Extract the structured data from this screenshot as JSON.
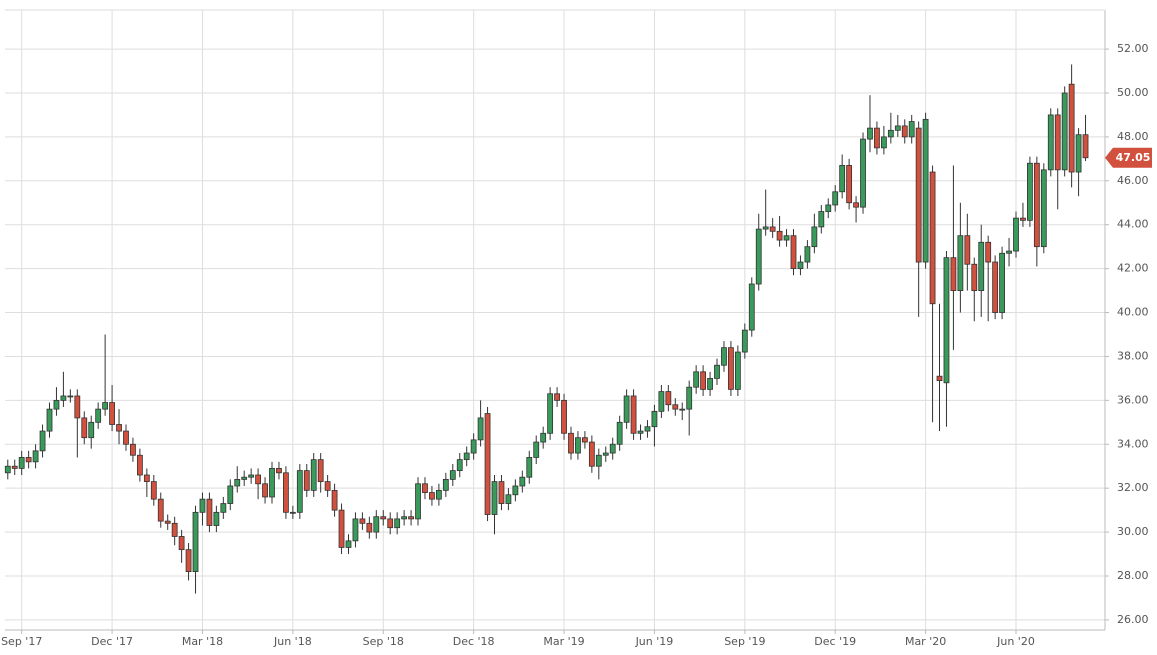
{
  "chart_data": {
    "type": "candlestick",
    "up_color": "#3a9a5b",
    "down_color": "#d2503e",
    "grid": true,
    "x": [
      0,
      1,
      2,
      3,
      4,
      5,
      6,
      7,
      8,
      9,
      10,
      11,
      12,
      13,
      14,
      15,
      16,
      17,
      18,
      19,
      20,
      21,
      22,
      23,
      24,
      25,
      26,
      27,
      28,
      29,
      30,
      31,
      32,
      33,
      34,
      35,
      36,
      37,
      38,
      39,
      40,
      41,
      42,
      43,
      44,
      45,
      46,
      47,
      48,
      49,
      50,
      51,
      52,
      53,
      54,
      55,
      56,
      57,
      58,
      59,
      60,
      61,
      62,
      63,
      64,
      65,
      66,
      67,
      68,
      69,
      70,
      71,
      72,
      73,
      74,
      75,
      76,
      77,
      78,
      79,
      80,
      81,
      82,
      83,
      84,
      85,
      86,
      87,
      88,
      89,
      90,
      91,
      92,
      93,
      94,
      95,
      96,
      97,
      98,
      99,
      100,
      101,
      102,
      103,
      104,
      105,
      106,
      107,
      108,
      109,
      110,
      111,
      112,
      113,
      114,
      115,
      116,
      117,
      118,
      119,
      120,
      121,
      122,
      123,
      124,
      125,
      126,
      127,
      128,
      129,
      130,
      131,
      132,
      133,
      134,
      135,
      136,
      137,
      138,
      139,
      140,
      141,
      142,
      143,
      144,
      145,
      146,
      147,
      148,
      149,
      150,
      151,
      152,
      153,
      154,
      155
    ],
    "open": [
      32.7,
      33.0,
      32.9,
      33.4,
      33.2,
      33.7,
      34.6,
      35.6,
      36.0,
      36.2,
      36.2,
      35.2,
      34.3,
      35.0,
      35.6,
      35.9,
      34.9,
      34.6,
      34.0,
      33.5,
      32.6,
      32.3,
      31.5,
      30.5,
      30.4,
      29.8,
      29.2,
      28.2,
      30.9,
      31.5,
      30.3,
      30.9,
      31.3,
      32.1,
      32.4,
      32.5,
      32.6,
      32.2,
      31.6,
      32.9,
      32.7,
      30.9,
      30.9,
      32.8,
      31.9,
      33.3,
      32.3,
      31.9,
      31.0,
      29.3,
      29.6,
      30.6,
      30.4,
      30.0,
      30.7,
      30.6,
      30.2,
      30.6,
      30.7,
      30.6,
      32.2,
      31.8,
      31.5,
      31.9,
      32.4,
      32.8,
      33.3,
      33.6,
      34.2,
      35.4,
      30.8,
      32.3,
      31.3,
      31.7,
      32.1,
      32.5,
      33.4,
      34.1,
      34.5,
      36.3,
      36.0,
      34.5,
      33.6,
      34.3,
      34.1,
      33.0,
      33.5,
      33.6,
      34.0,
      35.0,
      36.2,
      34.5,
      34.6,
      34.8,
      35.5,
      36.4,
      35.8,
      35.6,
      35.6,
      36.6,
      37.3,
      36.5,
      37.0,
      37.6,
      38.4,
      36.5,
      38.2,
      39.2,
      41.3,
      43.8,
      43.9,
      43.7,
      43.3,
      43.5,
      42.0,
      42.3,
      43.0,
      43.9,
      44.6,
      44.9,
      45.5,
      46.7,
      45.0,
      44.8,
      47.9,
      48.4,
      47.5,
      48.0,
      48.3,
      48.5,
      48.0,
      48.4,
      42.3,
      46.4,
      37.1,
      36.8,
      42.5,
      41.0,
      43.5,
      42.2,
      41.0,
      43.2,
      42.3,
      40.0,
      42.7,
      42.8,
      44.3,
      44.2,
      46.8,
      43.0,
      46.5,
      49.0,
      46.5,
      50.4,
      46.4,
      48.1
    ],
    "high": [
      33.3,
      33.3,
      33.7,
      33.7,
      34.0,
      34.9,
      35.9,
      36.6,
      37.3,
      36.5,
      36.5,
      35.5,
      35.3,
      35.9,
      39.0,
      36.7,
      35.6,
      34.9,
      34.3,
      33.8,
      32.9,
      32.6,
      31.8,
      30.8,
      30.7,
      30.1,
      29.5,
      31.2,
      31.8,
      31.8,
      31.2,
      31.6,
      32.4,
      33.0,
      32.8,
      32.9,
      32.9,
      32.5,
      33.2,
      33.2,
      33.0,
      31.2,
      33.1,
      33.1,
      33.6,
      33.6,
      32.6,
      32.2,
      31.3,
      29.9,
      30.9,
      30.9,
      30.7,
      31.0,
      31.0,
      30.9,
      30.9,
      31.0,
      31.0,
      32.5,
      32.5,
      32.1,
      32.2,
      32.7,
      33.1,
      33.6,
      33.9,
      34.5,
      36.0,
      35.7,
      32.6,
      32.6,
      32.0,
      32.4,
      32.8,
      33.7,
      34.4,
      34.8,
      36.6,
      36.6,
      36.3,
      34.8,
      34.6,
      34.6,
      34.4,
      33.8,
      33.9,
      34.3,
      35.3,
      36.5,
      36.5,
      34.9,
      35.1,
      35.8,
      36.7,
      36.7,
      36.1,
      35.9,
      36.9,
      37.6,
      37.6,
      37.3,
      37.9,
      38.7,
      38.7,
      38.5,
      39.5,
      41.6,
      44.5,
      45.6,
      44.3,
      44.4,
      43.8,
      43.8,
      42.6,
      43.3,
      44.5,
      44.9,
      45.2,
      45.8,
      47.2,
      47.0,
      45.3,
      48.2,
      49.9,
      48.7,
      48.5,
      49.1,
      49.0,
      48.8,
      49.0,
      48.7,
      49.1,
      46.7,
      40.4,
      42.8,
      46.7,
      45.0,
      44.5,
      42.5,
      44.0,
      43.5,
      42.6,
      43.0,
      43.4,
      44.6,
      45.0,
      47.1,
      47.1,
      46.8,
      49.3,
      49.3,
      50.3,
      51.3,
      48.4,
      49.0
    ],
    "low": [
      32.4,
      32.6,
      32.6,
      32.9,
      32.9,
      33.4,
      34.3,
      35.3,
      35.7,
      35.9,
      33.4,
      34.0,
      33.8,
      34.7,
      35.3,
      34.6,
      34.0,
      33.7,
      33.2,
      32.3,
      31.6,
      31.2,
      30.2,
      30.1,
      29.4,
      28.6,
      27.8,
      27.2,
      30.3,
      30.0,
      30.0,
      30.6,
      31.0,
      31.8,
      32.1,
      32.2,
      31.5,
      31.3,
      31.3,
      32.4,
      30.6,
      30.6,
      30.6,
      31.6,
      31.6,
      31.8,
      31.6,
      30.7,
      29.0,
      29.0,
      29.3,
      30.1,
      29.7,
      29.7,
      30.3,
      29.9,
      29.9,
      30.3,
      30.3,
      30.3,
      31.5,
      31.2,
      31.2,
      31.6,
      32.1,
      32.5,
      33.0,
      33.3,
      33.9,
      30.5,
      29.9,
      31.0,
      31.0,
      31.4,
      31.8,
      32.2,
      33.1,
      33.8,
      34.2,
      35.7,
      34.2,
      33.3,
      33.3,
      33.8,
      32.7,
      32.4,
      33.2,
      33.3,
      33.7,
      34.7,
      34.2,
      34.2,
      34.3,
      33.9,
      35.2,
      35.5,
      35.3,
      35.1,
      34.4,
      36.3,
      36.2,
      36.2,
      36.7,
      37.3,
      36.2,
      36.2,
      37.9,
      38.9,
      41.0,
      43.5,
      43.4,
      43.0,
      43.0,
      41.7,
      41.7,
      42.0,
      42.7,
      43.6,
      44.3,
      44.6,
      45.2,
      44.7,
      44.1,
      44.5,
      47.3,
      47.2,
      47.2,
      47.7,
      48.0,
      47.7,
      47.7,
      39.8,
      42.0,
      35.0,
      34.6,
      34.8,
      38.3,
      40.0,
      41.0,
      39.6,
      39.8,
      39.6,
      39.7,
      39.7,
      42.1,
      42.5,
      43.9,
      43.9,
      42.1,
      42.7,
      46.2,
      44.7,
      46.2,
      45.7,
      45.3,
      46.9
    ],
    "close": [
      33.0,
      32.9,
      33.4,
      33.2,
      33.7,
      34.6,
      35.6,
      36.0,
      36.2,
      36.2,
      35.2,
      34.3,
      35.0,
      35.6,
      35.9,
      34.9,
      34.6,
      34.0,
      33.5,
      32.6,
      32.3,
      31.5,
      30.5,
      30.4,
      29.8,
      29.2,
      28.2,
      30.9,
      31.5,
      30.3,
      30.9,
      31.3,
      32.1,
      32.4,
      32.5,
      32.6,
      32.2,
      31.6,
      32.9,
      32.7,
      30.9,
      30.9,
      32.8,
      31.9,
      33.3,
      32.3,
      31.9,
      31.0,
      29.3,
      29.6,
      30.6,
      30.4,
      30.0,
      30.7,
      30.6,
      30.2,
      30.6,
      30.7,
      30.6,
      32.2,
      31.8,
      31.5,
      31.9,
      32.4,
      32.8,
      33.3,
      33.6,
      34.2,
      35.2,
      30.8,
      32.3,
      31.3,
      31.7,
      32.1,
      32.5,
      33.4,
      34.1,
      34.5,
      36.3,
      36.0,
      34.5,
      33.6,
      34.3,
      34.1,
      33.0,
      33.5,
      33.6,
      34.0,
      35.0,
      36.2,
      34.5,
      34.6,
      34.8,
      35.5,
      36.4,
      35.8,
      35.6,
      35.6,
      36.6,
      37.3,
      36.5,
      37.0,
      37.6,
      38.4,
      36.5,
      38.2,
      39.2,
      41.3,
      43.8,
      43.9,
      43.7,
      43.3,
      43.5,
      42.0,
      42.3,
      43.0,
      43.9,
      44.6,
      44.9,
      45.5,
      46.7,
      45.0,
      44.8,
      47.9,
      48.4,
      47.5,
      48.0,
      48.3,
      48.5,
      48.0,
      48.7,
      42.3,
      48.8,
      40.4,
      36.9,
      42.5,
      41.0,
      43.5,
      42.2,
      41.0,
      43.2,
      42.3,
      40.0,
      42.7,
      42.8,
      44.3,
      44.2,
      46.8,
      43.0,
      46.5,
      49.0,
      46.5,
      50.0,
      46.4,
      48.1,
      47.05
    ],
    "xlim": [
      -0.4,
      157.8
    ],
    "ylim": [
      25.54,
      53.78
    ],
    "xticks": [
      {
        "value": 2,
        "label": "Sep '17"
      },
      {
        "value": 15,
        "label": "Dec '17"
      },
      {
        "value": 28,
        "label": "Mar '18"
      },
      {
        "value": 41,
        "label": "Jun '18"
      },
      {
        "value": 54,
        "label": "Sep '18"
      },
      {
        "value": 67,
        "label": "Dec '18"
      },
      {
        "value": 80,
        "label": "Mar '19"
      },
      {
        "value": 93,
        "label": "Jun '19"
      },
      {
        "value": 106,
        "label": "Sep '19"
      },
      {
        "value": 119,
        "label": "Dec '19"
      },
      {
        "value": 132,
        "label": "Mar '20"
      },
      {
        "value": 145,
        "label": "Jun '20"
      }
    ],
    "yticks": [
      {
        "value": 26,
        "label": "26.00"
      },
      {
        "value": 28,
        "label": "28.00"
      },
      {
        "value": 30,
        "label": "30.00"
      },
      {
        "value": 32,
        "label": "32.00"
      },
      {
        "value": 34,
        "label": "34.00"
      },
      {
        "value": 36,
        "label": "36.00"
      },
      {
        "value": 38,
        "label": "38.00"
      },
      {
        "value": 40,
        "label": "40.00"
      },
      {
        "value": 42,
        "label": "42.00"
      },
      {
        "value": 44,
        "label": "44.00"
      },
      {
        "value": 46,
        "label": "46.00"
      },
      {
        "value": 48,
        "label": "48.00"
      },
      {
        "value": 50,
        "label": "50.00"
      },
      {
        "value": 52,
        "label": "52.00"
      }
    ]
  }
}
